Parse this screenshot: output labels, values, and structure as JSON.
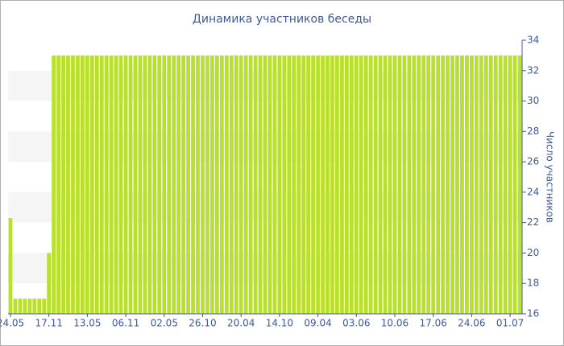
{
  "chart_data": {
    "type": "bar",
    "title": "Динамика участников беседы",
    "y_label": "Число участников",
    "y_axis_side": "right",
    "color": "#b8e02c",
    "grid": true,
    "categories": [
      "24.05",
      null,
      null,
      null,
      null,
      null,
      null,
      null,
      "17.11",
      null,
      null,
      null,
      null,
      null,
      null,
      null,
      "13.05",
      null,
      null,
      null,
      null,
      null,
      null,
      null,
      "06.11",
      null,
      null,
      null,
      null,
      null,
      null,
      null,
      "02.05",
      null,
      null,
      null,
      null,
      null,
      null,
      null,
      "26.10",
      null,
      null,
      null,
      null,
      null,
      null,
      null,
      "20.04",
      null,
      null,
      null,
      null,
      null,
      null,
      null,
      "14.10",
      null,
      null,
      null,
      null,
      null,
      null,
      null,
      "09.04",
      null,
      null,
      null,
      null,
      null,
      null,
      null,
      "03.06",
      null,
      null,
      null,
      null,
      null,
      null,
      null,
      "10.06",
      null,
      null,
      null,
      null,
      null,
      null,
      null,
      "17.06",
      null,
      null,
      null,
      null,
      null,
      null,
      null,
      "24.06",
      null,
      null,
      null,
      null,
      null,
      null,
      null,
      "01.07",
      null,
      null
    ],
    "values": [
      22.3,
      17,
      17,
      17,
      17,
      17,
      17,
      17,
      20,
      33,
      33,
      33,
      33,
      33,
      33,
      33,
      33,
      33,
      33,
      33,
      33,
      33,
      33,
      33,
      33,
      33,
      33,
      33,
      33,
      33,
      33,
      33,
      33,
      33,
      33,
      33,
      33,
      33,
      33,
      33,
      33,
      33,
      33,
      33,
      33,
      33,
      33,
      33,
      33,
      33,
      33,
      33,
      33,
      33,
      33,
      33,
      33,
      33,
      33,
      33,
      33,
      33,
      33,
      33,
      33,
      33,
      33,
      33,
      33,
      33,
      33,
      33,
      33,
      33,
      33,
      33,
      33,
      33,
      33,
      33,
      33,
      33,
      33,
      33,
      33,
      33,
      33,
      33,
      33,
      33,
      33,
      33,
      33,
      33,
      33,
      33,
      33,
      33,
      33,
      33,
      33,
      33,
      33,
      33,
      33,
      33,
      33
    ],
    "ylim": [
      16,
      34
    ],
    "yticks": [
      16,
      18,
      20,
      22,
      24,
      26,
      28,
      30,
      32,
      34
    ]
  }
}
